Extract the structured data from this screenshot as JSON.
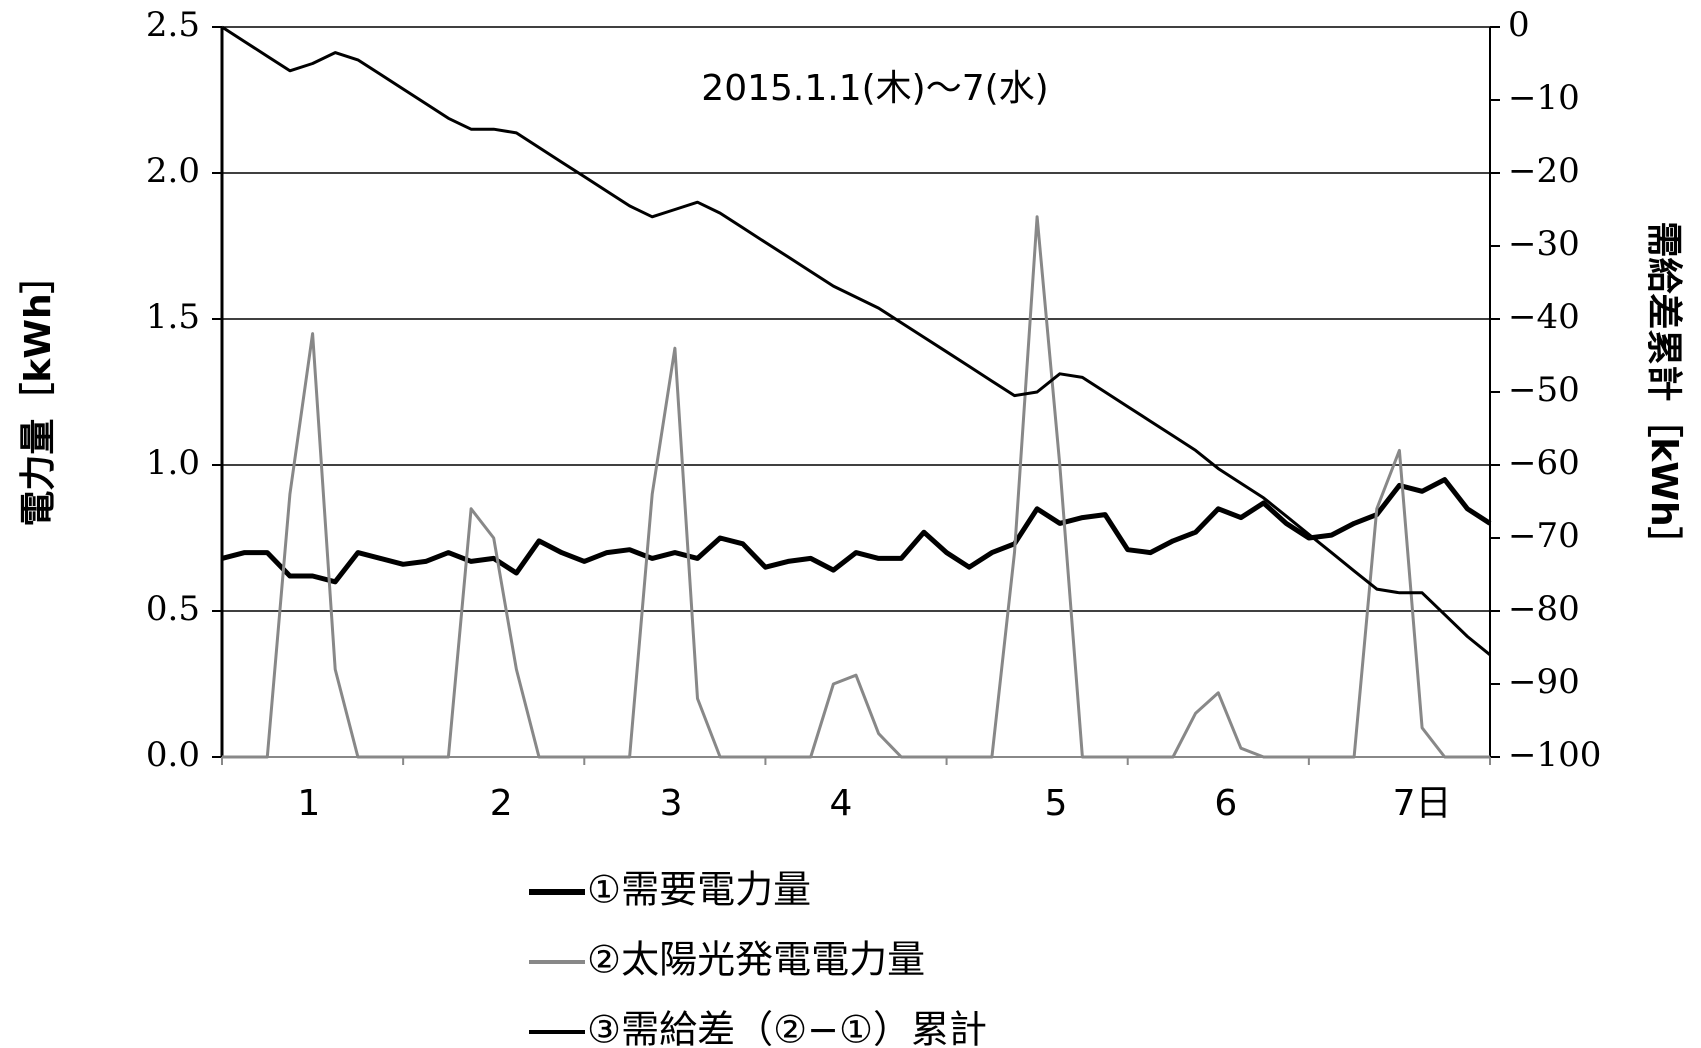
{
  "chart_data": {
    "type": "line",
    "annotation": "2015.1.1(木)～7(水)",
    "ylabel": "電力量［kWh］",
    "y2label": "需給差累計［kWh］",
    "x": [
      0,
      3,
      6,
      9,
      12,
      15,
      18,
      21,
      24,
      27,
      30,
      33,
      36,
      39,
      42,
      45,
      48,
      51,
      54,
      57,
      60,
      63,
      66,
      69,
      72,
      75,
      78,
      81,
      84,
      87,
      90,
      93,
      96,
      99,
      102,
      105,
      108,
      111,
      114,
      117,
      120,
      123,
      126,
      129,
      132,
      135,
      138,
      141,
      144,
      147,
      150,
      153,
      156,
      159,
      162,
      165,
      168
    ],
    "xlim": [
      0,
      168
    ],
    "xticks": [
      {
        "value": 11.5,
        "label": "1"
      },
      {
        "value": 37,
        "label": "2"
      },
      {
        "value": 59.5,
        "label": "3"
      },
      {
        "value": 82,
        "label": "4"
      },
      {
        "value": 110.5,
        "label": "5"
      },
      {
        "value": 133,
        "label": "6"
      },
      {
        "value": 159,
        "label": "7日"
      }
    ],
    "xminorticks": [
      0,
      24,
      48,
      72,
      96,
      120,
      144,
      168
    ],
    "ylim": [
      0,
      2.5
    ],
    "yticks": [
      {
        "value": 0,
        "label": "0.0"
      },
      0.5,
      {
        "value": 1,
        "label": "1.0"
      },
      1.5,
      {
        "value": 2,
        "label": "2.0"
      },
      2.5
    ],
    "y2lim": [
      -100,
      0
    ],
    "y2ticks": [
      {
        "value": -100,
        "label": "−100"
      },
      {
        "value": -90,
        "label": "−90"
      },
      {
        "value": -80,
        "label": "−80"
      },
      {
        "value": -70,
        "label": "−70"
      },
      {
        "value": -60,
        "label": "−60"
      },
      {
        "value": -50,
        "label": "−50"
      },
      {
        "value": -40,
        "label": "−40"
      },
      {
        "value": -30,
        "label": "−30"
      },
      {
        "value": -20,
        "label": "−20"
      },
      {
        "value": -10,
        "label": "−10"
      },
      0
    ],
    "grid": true,
    "legend": "bottom",
    "series": [
      {
        "name": "①需要電力量",
        "color": "#000000",
        "width": 5,
        "values": [
          0.68,
          0.7,
          0.7,
          0.62,
          0.62,
          0.6,
          0.7,
          0.68,
          0.66,
          0.67,
          0.7,
          0.67,
          0.68,
          0.63,
          0.74,
          0.7,
          0.67,
          0.7,
          0.71,
          0.68,
          0.7,
          0.68,
          0.75,
          0.73,
          0.65,
          0.67,
          0.68,
          0.64,
          0.7,
          0.68,
          0.68,
          0.77,
          0.7,
          0.65,
          0.7,
          0.73,
          0.85,
          0.8,
          0.82,
          0.83,
          0.71,
          0.7,
          0.74,
          0.77,
          0.85,
          0.82,
          0.87,
          0.8,
          0.75,
          0.76,
          0.8,
          0.83,
          0.93,
          0.91,
          0.95,
          0.85,
          0.8
        ]
      },
      {
        "name": "②太陽光発電電力量",
        "color": "#888888",
        "width": 3,
        "values": [
          0,
          0,
          0,
          0.9,
          1.45,
          0.3,
          0,
          0,
          0,
          0,
          0,
          0.85,
          0.75,
          0.3,
          0,
          0,
          0,
          0,
          0,
          0.9,
          1.4,
          0.2,
          0,
          0,
          0,
          0,
          0,
          0.25,
          0.28,
          0.08,
          0,
          0,
          0,
          0,
          0,
          0.7,
          1.85,
          1.0,
          0,
          0,
          0,
          0,
          0,
          0.15,
          0.22,
          0.03,
          0,
          0,
          0,
          0,
          0,
          0.85,
          1.05,
          0.1,
          0,
          0,
          0
        ]
      },
      {
        "name": "③需給差（②−①）累計",
        "color": "#000000",
        "width": 3,
        "axis": "y2",
        "values": [
          0,
          -2,
          -4,
          -6,
          -5,
          -3.5,
          -4.5,
          -6.5,
          -8.5,
          -10.5,
          -12.5,
          -14,
          -14,
          -14.5,
          -16.5,
          -18.5,
          -20.5,
          -22.5,
          -24.5,
          -26,
          -25,
          -24,
          -25.5,
          -27.5,
          -29.5,
          -31.5,
          -33.5,
          -35.5,
          -37,
          -38.5,
          -40.5,
          -42.5,
          -44.5,
          -46.5,
          -48.5,
          -50.5,
          -50,
          -47.5,
          -48,
          -50,
          -52,
          -54,
          -56,
          -58,
          -60.5,
          -62.5,
          -64.5,
          -67,
          -69.5,
          -72,
          -74.5,
          -77,
          -77.5,
          -77.5,
          -80.5,
          -83.5,
          -86
        ]
      }
    ]
  }
}
